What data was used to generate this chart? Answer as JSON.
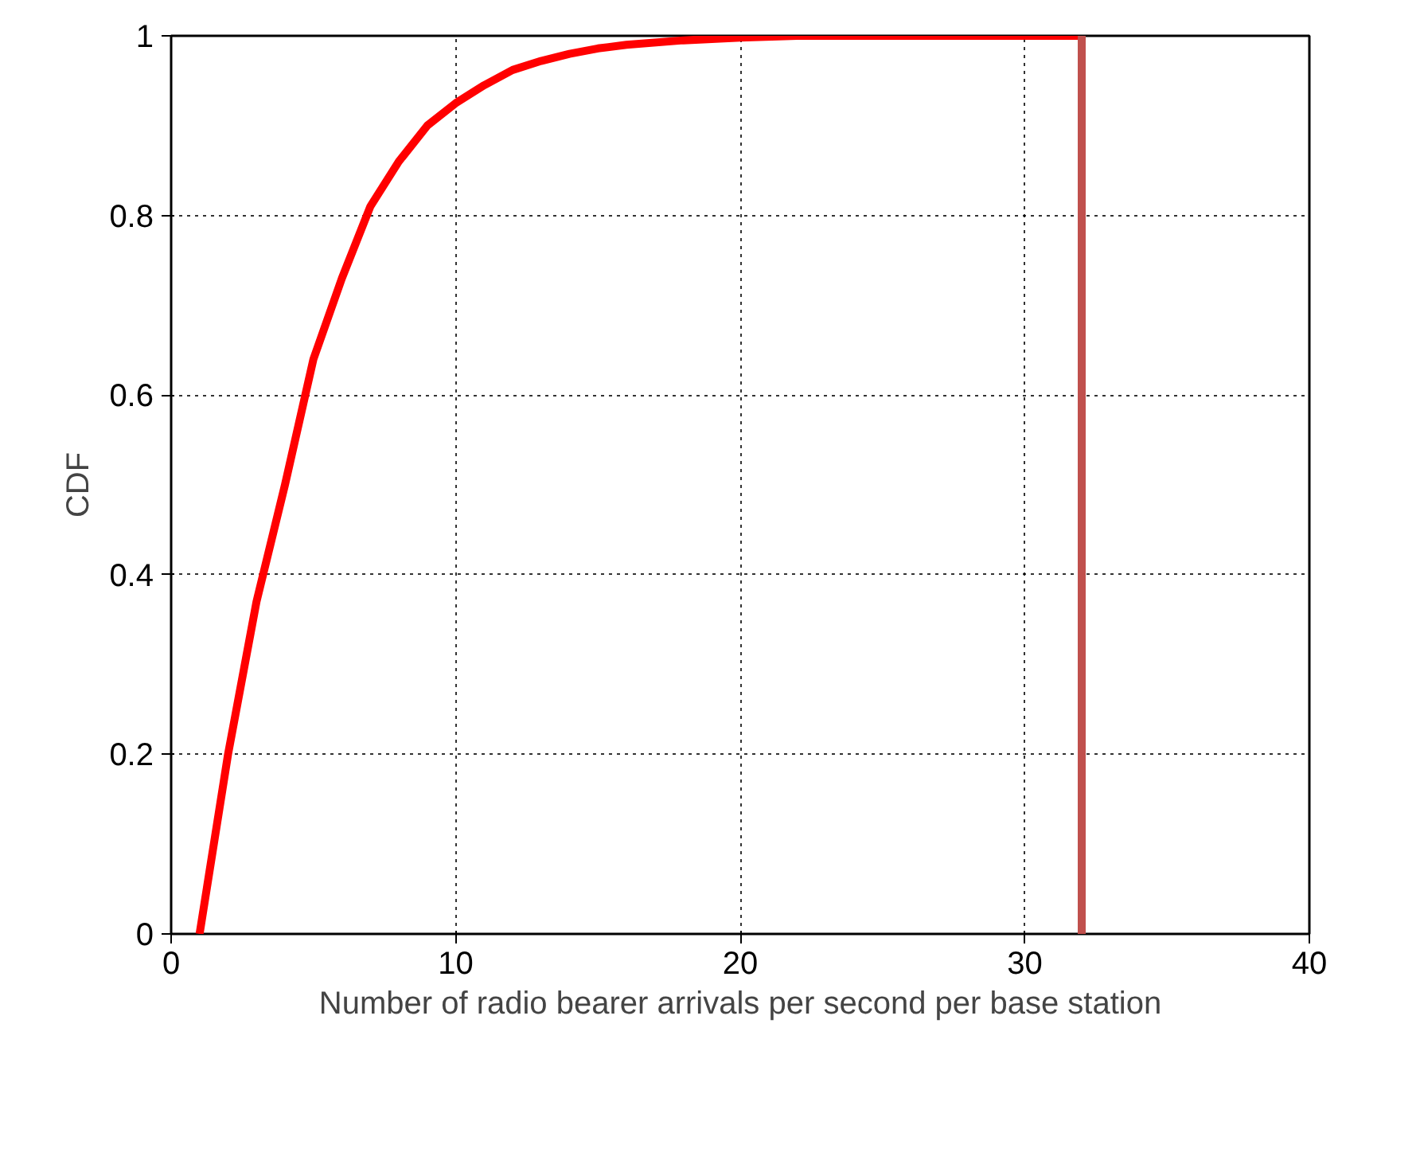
{
  "chart_data": {
    "type": "line",
    "xlabel": "Number of radio bearer arrivals per second per base station",
    "ylabel": "CDF",
    "x": [
      1,
      2,
      3,
      4,
      5,
      6,
      7,
      8,
      9,
      10,
      11,
      12,
      13,
      14,
      15,
      16,
      18,
      20,
      22,
      26,
      32
    ],
    "series": [
      {
        "color": "#ff0000",
        "values": [
          0,
          0.2,
          0.37,
          0.5,
          0.64,
          0.73,
          0.81,
          0.86,
          0.9,
          0.925,
          0.945,
          0.962,
          0.972,
          0.98,
          0.986,
          0.99,
          0.995,
          0.998,
          1,
          1,
          1
        ]
      }
    ],
    "xlim": [
      0,
      40
    ],
    "ylim": [
      0,
      1
    ],
    "xticks": [
      0,
      10,
      20,
      30,
      40
    ],
    "yticks": [
      0,
      0.2,
      0.4,
      0.6,
      0.8,
      1
    ],
    "grid": true,
    "line_style": "solid",
    "marker": "none",
    "ref_lines": [
      {
        "axis": "x",
        "value": 32,
        "color": "#c0504d"
      }
    ]
  }
}
